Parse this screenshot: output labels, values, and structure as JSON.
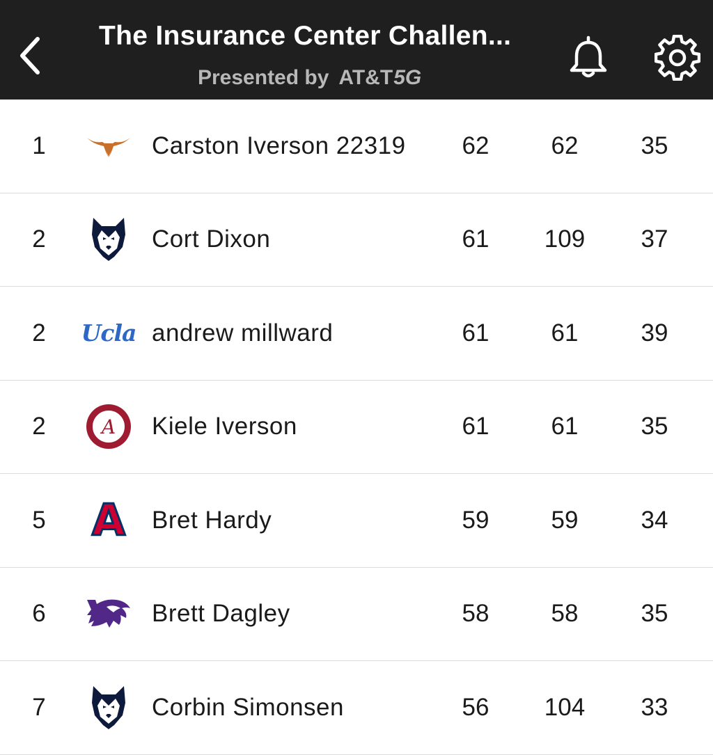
{
  "header": {
    "title": "The Insurance Center Challen...",
    "subtitle_prefix": "Presented by",
    "sponsor_main": "AT&T",
    "sponsor_suffix": "5G",
    "back_icon": "chevron-left-icon",
    "notifications_icon": "bell-icon",
    "settings_icon": "gear-icon"
  },
  "colors": {
    "header_bg": "#1f1f1f",
    "subtitle": "#b8b8b8",
    "texas_orange": "#c8702a",
    "uconn_navy": "#0e1a3c",
    "ucla_blue": "#2d68c4",
    "alabama_crimson": "#9e1b32",
    "arizona_red": "#cc0033",
    "arizona_navy": "#003366",
    "kstate_purple": "#512888"
  },
  "standings": [
    {
      "rank": "1",
      "team_logo": "texas-longhorns-logo",
      "name": "Carston Iverson 22319",
      "stat1": "62",
      "stat2": "62",
      "stat3": "35"
    },
    {
      "rank": "2",
      "team_logo": "uconn-huskies-logo",
      "name": "Cort Dixon",
      "stat1": "61",
      "stat2": "109",
      "stat3": "37"
    },
    {
      "rank": "2",
      "team_logo": "ucla-logo",
      "logo_text": "Ucla",
      "name": "andrew millward",
      "stat1": "61",
      "stat2": "61",
      "stat3": "39"
    },
    {
      "rank": "2",
      "team_logo": "alabama-crimson-tide-logo",
      "logo_text": "A",
      "name": "Kiele Iverson",
      "stat1": "61",
      "stat2": "61",
      "stat3": "35"
    },
    {
      "rank": "5",
      "team_logo": "arizona-wildcats-logo",
      "logo_text": "A",
      "name": "Bret Hardy",
      "stat1": "59",
      "stat2": "59",
      "stat3": "34"
    },
    {
      "rank": "6",
      "team_logo": "kansas-state-wildcats-logo",
      "name": "Brett Dagley",
      "stat1": "58",
      "stat2": "58",
      "stat3": "35"
    },
    {
      "rank": "7",
      "team_logo": "uconn-huskies-logo",
      "name": "Corbin Simonsen",
      "stat1": "56",
      "stat2": "104",
      "stat3": "33"
    }
  ]
}
